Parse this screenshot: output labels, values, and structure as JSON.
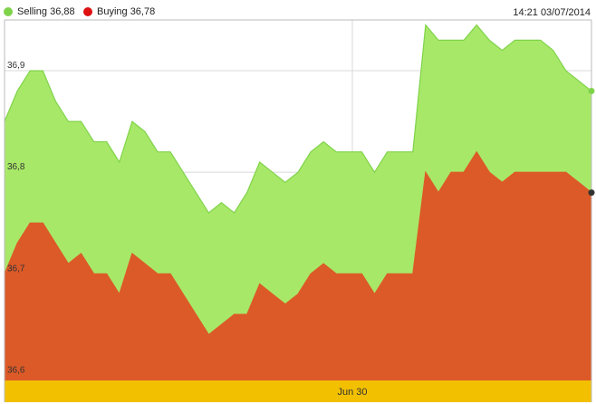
{
  "header": {
    "timestamp": "14:21 03/07/2014"
  },
  "colors": {
    "selling": "#a8e868",
    "selling_line": "#7fd34a",
    "buying": "#dc5a28",
    "buying_legend": "#dd1111",
    "date_band": "#f3c000",
    "grid": "#d8d8d8"
  },
  "chart_data": {
    "type": "area",
    "x_band_label": "Jun 30",
    "ylim": [
      36.595,
      36.95
    ],
    "yticks": [
      {
        "value": 36.9,
        "label": "36,9"
      },
      {
        "value": 36.8,
        "label": "36,8"
      },
      {
        "value": 36.7,
        "label": "36,7"
      },
      {
        "value": 36.6,
        "label": "36,6"
      }
    ],
    "series": [
      {
        "name": "Selling",
        "legend": "Selling 36,88",
        "values": [
          36.85,
          36.88,
          36.9,
          36.9,
          36.87,
          36.85,
          36.85,
          36.83,
          36.83,
          36.81,
          36.85,
          36.84,
          36.82,
          36.82,
          36.8,
          36.78,
          36.76,
          36.77,
          36.76,
          36.78,
          36.81,
          36.8,
          36.79,
          36.8,
          36.82,
          36.83,
          36.82,
          36.82,
          36.82,
          36.8,
          36.82,
          36.82,
          36.82,
          36.945,
          36.93,
          36.93,
          36.93,
          36.945,
          36.93,
          36.92,
          36.93,
          36.93,
          36.93,
          36.92,
          36.9,
          36.89,
          36.88
        ]
      },
      {
        "name": "Buying",
        "legend": "Buying 36,78",
        "values": [
          36.7,
          36.73,
          36.75,
          36.75,
          36.73,
          36.71,
          36.72,
          36.7,
          36.7,
          36.68,
          36.72,
          36.71,
          36.7,
          36.7,
          36.68,
          36.66,
          36.64,
          36.65,
          36.66,
          36.66,
          36.69,
          36.68,
          36.67,
          36.68,
          36.7,
          36.71,
          36.7,
          36.7,
          36.7,
          36.68,
          36.7,
          36.7,
          36.7,
          36.8,
          36.78,
          36.8,
          36.8,
          36.82,
          36.8,
          36.79,
          36.8,
          36.8,
          36.8,
          36.8,
          36.8,
          36.79,
          36.78
        ]
      }
    ]
  }
}
